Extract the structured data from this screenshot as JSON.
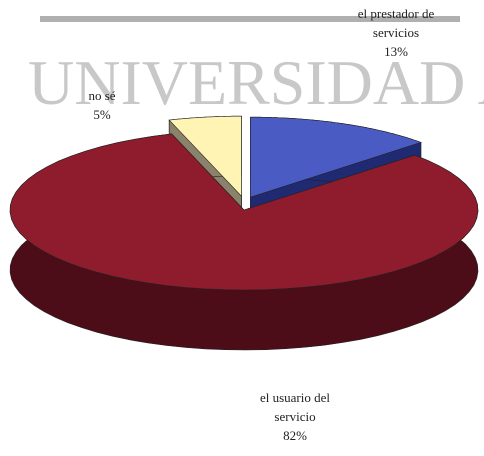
{
  "chart_data": {
    "type": "pie3d",
    "watermark": "UNIVERSIDAD A",
    "categories": [
      "el prestador de servicios",
      "el usuario del servicio",
      "no sé"
    ],
    "values": [
      13,
      82,
      5
    ],
    "value_labels": [
      "13%",
      "82%",
      "5%"
    ],
    "colors": [
      "#4a5cc4",
      "#8e1c2c",
      "#fff4b4"
    ],
    "side_colors": [
      "#1f2a72",
      "#4c0c18",
      "#8a826a"
    ]
  }
}
